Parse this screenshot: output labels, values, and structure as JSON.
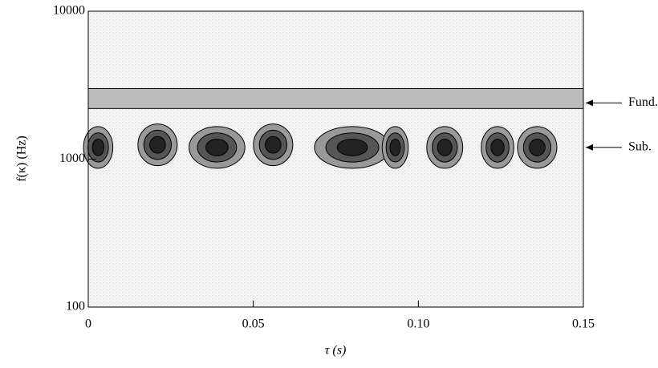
{
  "chart_data": {
    "type": "contour",
    "xlabel": "τ (s)",
    "ylabel": "f(κ) (Hz)",
    "xlim": [
      0,
      0.15
    ],
    "xticks": [
      0,
      0.05,
      {
        "value": 0.1,
        "label": "0.10"
      },
      0.15
    ],
    "ylim": [
      100,
      10000
    ],
    "yticks": [
      100,
      1000,
      10000
    ],
    "log_y": true,
    "blobs": {
      "x": [
        0.003,
        0.021,
        0.039,
        0.056,
        0.08,
        0.093,
        0.108,
        0.124,
        0.136
      ],
      "y": [
        1200,
        1250,
        1200,
        1250,
        1200,
        1200,
        1200,
        1200,
        1200
      ],
      "width": [
        0.006,
        0.009,
        0.014,
        0.009,
        0.02,
        0.005,
        0.008,
        0.007,
        0.009
      ]
    },
    "fund_band": {
      "lower": 2200,
      "upper": 3000
    },
    "annotations": [
      {
        "text": "Fund.",
        "y": 2400
      },
      {
        "text": "Sub.",
        "y": 1200
      }
    ]
  }
}
